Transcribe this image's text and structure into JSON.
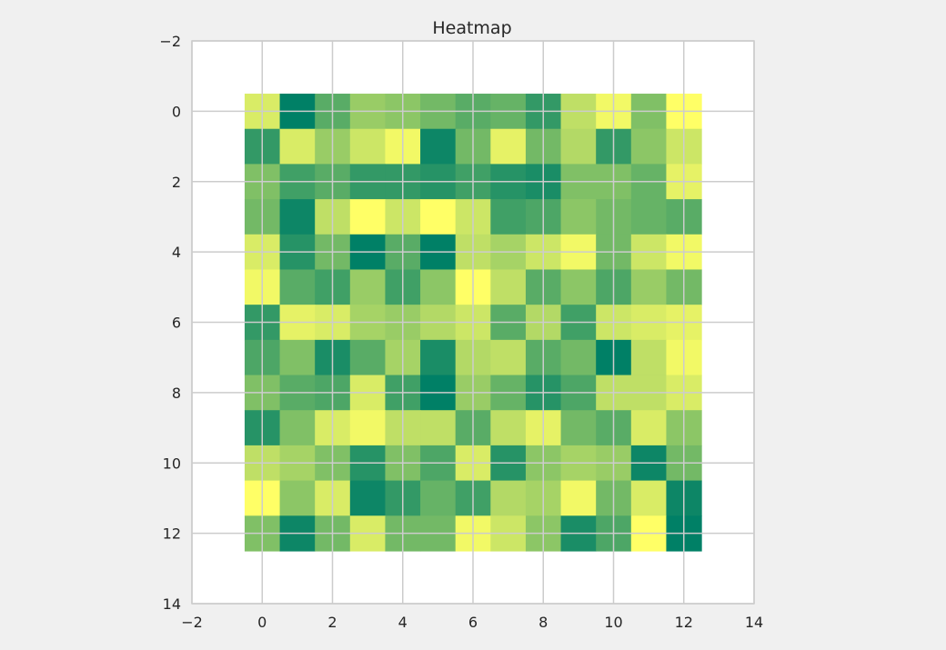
{
  "chart_data": {
    "type": "heatmap",
    "title": "Heatmap",
    "xlabel": "",
    "ylabel": "",
    "xlim": [
      -2,
      14
    ],
    "ylim": [
      14,
      -2
    ],
    "x_ticks": [
      -2,
      0,
      2,
      4,
      6,
      8,
      10,
      12,
      14
    ],
    "y_ticks": [
      -2,
      0,
      2,
      4,
      6,
      8,
      10,
      12,
      14
    ],
    "x_tick_labels": [
      "−2",
      "0",
      "2",
      "4",
      "6",
      "8",
      "10",
      "12",
      "14"
    ],
    "y_tick_labels": [
      "−2",
      "0",
      "2",
      "4",
      "6",
      "8",
      "10",
      "12",
      "14"
    ],
    "grid": true,
    "colormap": "summer",
    "color_low": "#008066",
    "color_high": "#ffff66",
    "vmin": 0,
    "vmax": 1,
    "values": [
      [
        0.85,
        0.0,
        0.35,
        0.6,
        0.55,
        0.45,
        0.35,
        0.4,
        0.2,
        0.75,
        0.95,
        0.5,
        1.0
      ],
      [
        0.2,
        0.85,
        0.6,
        0.8,
        0.95,
        0.05,
        0.45,
        0.9,
        0.45,
        0.7,
        0.2,
        0.55,
        0.8
      ],
      [
        0.5,
        0.25,
        0.35,
        0.2,
        0.2,
        0.15,
        0.25,
        0.15,
        0.1,
        0.5,
        0.5,
        0.4,
        0.9
      ],
      [
        0.45,
        0.05,
        0.75,
        1.0,
        0.8,
        1.0,
        0.8,
        0.25,
        0.3,
        0.55,
        0.45,
        0.4,
        0.35
      ],
      [
        0.85,
        0.15,
        0.45,
        0.0,
        0.35,
        0.0,
        0.75,
        0.65,
        0.8,
        0.95,
        0.45,
        0.8,
        0.95
      ],
      [
        0.95,
        0.35,
        0.25,
        0.6,
        0.25,
        0.55,
        1.0,
        0.75,
        0.35,
        0.55,
        0.3,
        0.6,
        0.45
      ],
      [
        0.2,
        0.9,
        0.85,
        0.65,
        0.6,
        0.7,
        0.8,
        0.35,
        0.7,
        0.25,
        0.8,
        0.85,
        0.9
      ],
      [
        0.3,
        0.5,
        0.1,
        0.35,
        0.65,
        0.1,
        0.7,
        0.75,
        0.35,
        0.45,
        0.0,
        0.75,
        0.95
      ],
      [
        0.5,
        0.35,
        0.3,
        0.85,
        0.25,
        0.0,
        0.6,
        0.4,
        0.15,
        0.3,
        0.75,
        0.75,
        0.85
      ],
      [
        0.15,
        0.5,
        0.85,
        0.95,
        0.75,
        0.75,
        0.35,
        0.75,
        0.9,
        0.45,
        0.35,
        0.85,
        0.55
      ],
      [
        0.75,
        0.65,
        0.5,
        0.15,
        0.5,
        0.3,
        0.85,
        0.15,
        0.55,
        0.65,
        0.6,
        0.05,
        0.45
      ],
      [
        1.0,
        0.55,
        0.85,
        0.05,
        0.2,
        0.4,
        0.25,
        0.7,
        0.65,
        0.95,
        0.45,
        0.85,
        0.05
      ],
      [
        0.5,
        0.05,
        0.45,
        0.85,
        0.45,
        0.45,
        0.95,
        0.8,
        0.55,
        0.1,
        0.3,
        1.0,
        0.0
      ]
    ]
  }
}
